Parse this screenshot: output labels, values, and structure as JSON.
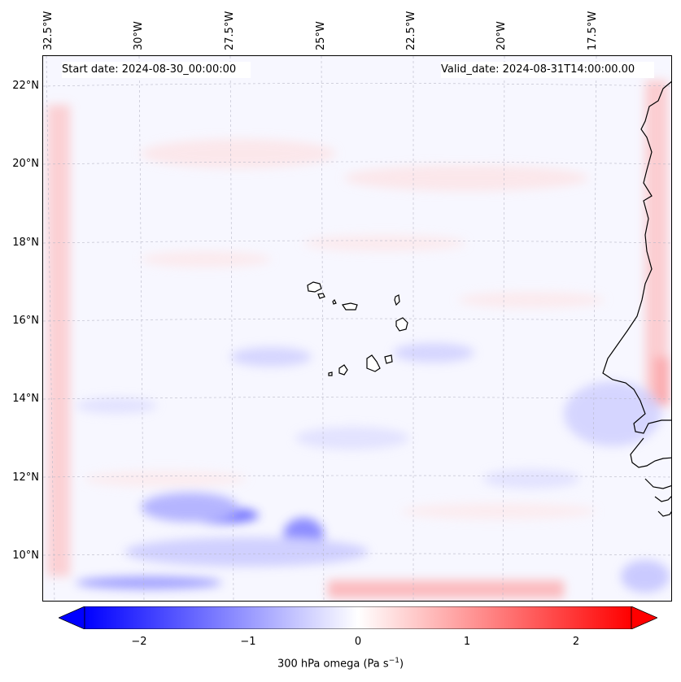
{
  "map": {
    "lon_labels": [
      "32.5°W",
      "30°W",
      "27.5°W",
      "25°W",
      "22.5°W",
      "20°W",
      "17.5°W"
    ],
    "lat_labels": [
      "22°N",
      "20°N",
      "18°N",
      "16°N",
      "14°N",
      "12°N",
      "10°N"
    ],
    "start_date": "Start date: 2024-08-30_00:00:00",
    "valid_date": "Valid_date: 2024-08-31T14:00:00.00",
    "variable": "300 hPa omega",
    "units": "Pa s",
    "units_exponent": "−1",
    "colormap": "bwr",
    "colors": {
      "negative": "#0000ff",
      "zero": "#ffffff",
      "positive": "#ff0000",
      "coastline": "#000000"
    }
  },
  "colorbar": {
    "ticks": [
      "−2",
      "−1",
      "0",
      "1",
      "2"
    ],
    "range": [
      -2.7,
      2.7
    ]
  }
}
